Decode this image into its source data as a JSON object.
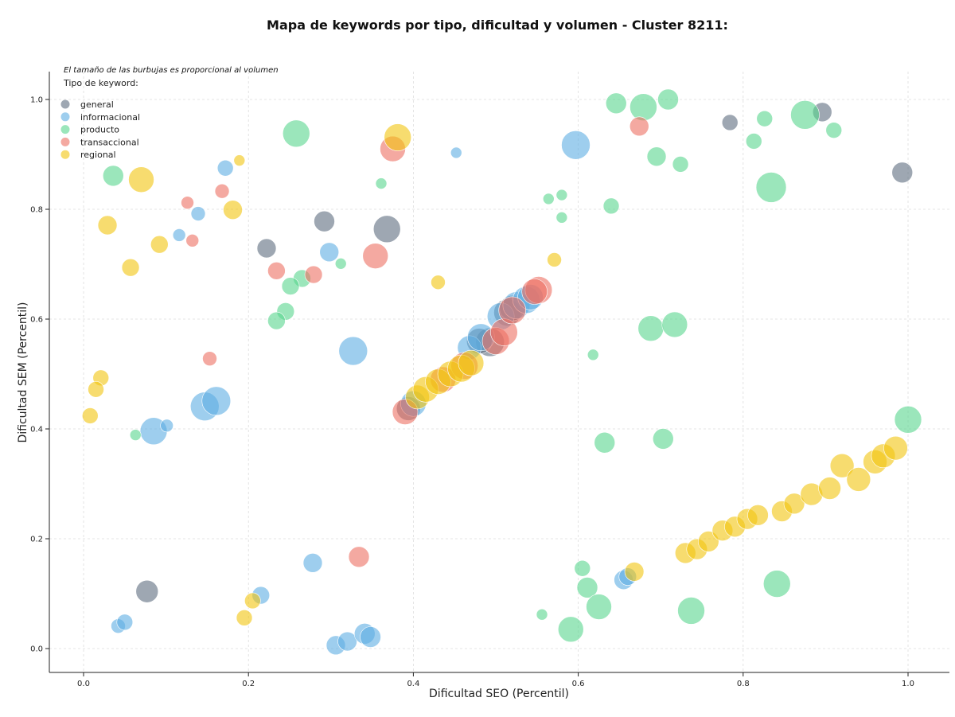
{
  "chart_data": {
    "type": "scatter",
    "title": "Mapa de keywords por tipo, dificultad y volumen - Cluster 8211:",
    "xlabel": "Dificultad SEO (Percentil)",
    "ylabel": "Dificultad SEM (Percentil)",
    "xlim": [
      -0.04,
      1.05
    ],
    "ylim": [
      -0.04,
      1.05
    ],
    "xticks": [
      "0.0",
      "0.2",
      "0.4",
      "0.6",
      "0.8",
      "1.0"
    ],
    "yticks": [
      "0.0",
      "0.2",
      "0.4",
      "0.6",
      "0.8",
      "1.0"
    ],
    "grid": true,
    "note": "El tamaño de las burbujas es proporcional al volumen",
    "legend_title": "Tipo de keyword:",
    "legend_position": "top-left",
    "series": [
      {
        "name": "general",
        "color": "#5d6d7e",
        "points": [
          {
            "x": 0.292,
            "y": 0.778,
            "size": 13
          },
          {
            "x": 0.368,
            "y": 0.764,
            "size": 17
          },
          {
            "x": 0.222,
            "y": 0.729,
            "size": 12
          },
          {
            "x": 0.784,
            "y": 0.958,
            "size": 10
          },
          {
            "x": 0.896,
            "y": 0.977,
            "size": 12
          },
          {
            "x": 0.993,
            "y": 0.867,
            "size": 13
          },
          {
            "x": 0.077,
            "y": 0.104,
            "size": 14
          },
          {
            "x": 0.493,
            "y": 0.558,
            "size": 18
          },
          {
            "x": 0.48,
            "y": 0.56,
            "size": 16
          },
          {
            "x": 0.514,
            "y": 0.612,
            "size": 17
          },
          {
            "x": 0.52,
            "y": 0.62,
            "size": 16
          },
          {
            "x": 0.394,
            "y": 0.437,
            "size": 15
          }
        ]
      },
      {
        "name": "informacional",
        "color": "#5dade2",
        "points": [
          {
            "x": 0.172,
            "y": 0.875,
            "size": 10
          },
          {
            "x": 0.452,
            "y": 0.903,
            "size": 7
          },
          {
            "x": 0.597,
            "y": 0.917,
            "size": 18
          },
          {
            "x": 0.139,
            "y": 0.792,
            "size": 9
          },
          {
            "x": 0.116,
            "y": 0.753,
            "size": 8
          },
          {
            "x": 0.298,
            "y": 0.722,
            "size": 12
          },
          {
            "x": 0.327,
            "y": 0.542,
            "size": 18
          },
          {
            "x": 0.147,
            "y": 0.441,
            "size": 18
          },
          {
            "x": 0.161,
            "y": 0.451,
            "size": 18
          },
          {
            "x": 0.085,
            "y": 0.396,
            "size": 17
          },
          {
            "x": 0.101,
            "y": 0.406,
            "size": 8
          },
          {
            "x": 0.278,
            "y": 0.156,
            "size": 12
          },
          {
            "x": 0.215,
            "y": 0.097,
            "size": 11
          },
          {
            "x": 0.042,
            "y": 0.041,
            "size": 9
          },
          {
            "x": 0.05,
            "y": 0.048,
            "size": 10
          },
          {
            "x": 0.306,
            "y": 0.006,
            "size": 12
          },
          {
            "x": 0.32,
            "y": 0.013,
            "size": 12
          },
          {
            "x": 0.341,
            "y": 0.027,
            "size": 13
          },
          {
            "x": 0.348,
            "y": 0.021,
            "size": 13
          },
          {
            "x": 0.655,
            "y": 0.125,
            "size": 12
          },
          {
            "x": 0.66,
            "y": 0.131,
            "size": 11
          },
          {
            "x": 0.4,
            "y": 0.446,
            "size": 16
          },
          {
            "x": 0.468,
            "y": 0.548,
            "size": 15
          },
          {
            "x": 0.482,
            "y": 0.567,
            "size": 17
          },
          {
            "x": 0.506,
            "y": 0.605,
            "size": 17
          },
          {
            "x": 0.525,
            "y": 0.625,
            "size": 17
          },
          {
            "x": 0.537,
            "y": 0.635,
            "size": 17
          },
          {
            "x": 0.542,
            "y": 0.64,
            "size": 16
          }
        ]
      },
      {
        "name": "producto",
        "color": "#58d68d",
        "points": [
          {
            "x": 0.036,
            "y": 0.861,
            "size": 13
          },
          {
            "x": 0.258,
            "y": 0.938,
            "size": 17
          },
          {
            "x": 0.361,
            "y": 0.847,
            "size": 7
          },
          {
            "x": 0.646,
            "y": 0.993,
            "size": 13
          },
          {
            "x": 0.679,
            "y": 0.986,
            "size": 17
          },
          {
            "x": 0.709,
            "y": 1.0,
            "size": 13
          },
          {
            "x": 0.695,
            "y": 0.896,
            "size": 12
          },
          {
            "x": 0.724,
            "y": 0.882,
            "size": 10
          },
          {
            "x": 0.813,
            "y": 0.924,
            "size": 10
          },
          {
            "x": 0.826,
            "y": 0.965,
            "size": 10
          },
          {
            "x": 0.875,
            "y": 0.972,
            "size": 18
          },
          {
            "x": 0.91,
            "y": 0.944,
            "size": 10
          },
          {
            "x": 0.834,
            "y": 0.84,
            "size": 19
          },
          {
            "x": 0.564,
            "y": 0.819,
            "size": 7
          },
          {
            "x": 0.58,
            "y": 0.826,
            "size": 7
          },
          {
            "x": 0.58,
            "y": 0.785,
            "size": 7
          },
          {
            "x": 0.64,
            "y": 0.806,
            "size": 10
          },
          {
            "x": 0.265,
            "y": 0.674,
            "size": 11
          },
          {
            "x": 0.251,
            "y": 0.66,
            "size": 11
          },
          {
            "x": 0.312,
            "y": 0.701,
            "size": 7
          },
          {
            "x": 0.245,
            "y": 0.614,
            "size": 11
          },
          {
            "x": 0.234,
            "y": 0.597,
            "size": 11
          },
          {
            "x": 0.688,
            "y": 0.583,
            "size": 16
          },
          {
            "x": 0.717,
            "y": 0.59,
            "size": 16
          },
          {
            "x": 0.618,
            "y": 0.535,
            "size": 7
          },
          {
            "x": 0.063,
            "y": 0.389,
            "size": 7
          },
          {
            "x": 0.632,
            "y": 0.375,
            "size": 13
          },
          {
            "x": 0.703,
            "y": 0.382,
            "size": 13
          },
          {
            "x": 1.0,
            "y": 0.417,
            "size": 17
          },
          {
            "x": 0.605,
            "y": 0.146,
            "size": 10
          },
          {
            "x": 0.611,
            "y": 0.111,
            "size": 13
          },
          {
            "x": 0.625,
            "y": 0.076,
            "size": 16
          },
          {
            "x": 0.737,
            "y": 0.069,
            "size": 17
          },
          {
            "x": 0.841,
            "y": 0.118,
            "size": 17
          },
          {
            "x": 0.556,
            "y": 0.062,
            "size": 7
          },
          {
            "x": 0.591,
            "y": 0.035,
            "size": 16
          }
        ]
      },
      {
        "name": "transaccional",
        "color": "#ec7063",
        "points": [
          {
            "x": 0.375,
            "y": 0.91,
            "size": 16
          },
          {
            "x": 0.674,
            "y": 0.951,
            "size": 12
          },
          {
            "x": 0.168,
            "y": 0.833,
            "size": 9
          },
          {
            "x": 0.126,
            "y": 0.812,
            "size": 8
          },
          {
            "x": 0.132,
            "y": 0.743,
            "size": 8
          },
          {
            "x": 0.354,
            "y": 0.715,
            "size": 16
          },
          {
            "x": 0.234,
            "y": 0.688,
            "size": 11
          },
          {
            "x": 0.279,
            "y": 0.681,
            "size": 11
          },
          {
            "x": 0.153,
            "y": 0.528,
            "size": 9
          },
          {
            "x": 0.334,
            "y": 0.167,
            "size": 13
          },
          {
            "x": 0.39,
            "y": 0.431,
            "size": 16
          },
          {
            "x": 0.436,
            "y": 0.49,
            "size": 16
          },
          {
            "x": 0.462,
            "y": 0.515,
            "size": 17
          },
          {
            "x": 0.5,
            "y": 0.56,
            "size": 17
          },
          {
            "x": 0.51,
            "y": 0.576,
            "size": 17
          },
          {
            "x": 0.52,
            "y": 0.616,
            "size": 17
          },
          {
            "x": 0.552,
            "y": 0.653,
            "size": 17
          },
          {
            "x": 0.547,
            "y": 0.65,
            "size": 16
          }
        ]
      },
      {
        "name": "regional",
        "color": "#f1c40f",
        "points": [
          {
            "x": 0.07,
            "y": 0.854,
            "size": 16
          },
          {
            "x": 0.381,
            "y": 0.931,
            "size": 17
          },
          {
            "x": 0.189,
            "y": 0.889,
            "size": 7
          },
          {
            "x": 0.029,
            "y": 0.771,
            "size": 12
          },
          {
            "x": 0.181,
            "y": 0.799,
            "size": 12
          },
          {
            "x": 0.092,
            "y": 0.736,
            "size": 11
          },
          {
            "x": 0.057,
            "y": 0.694,
            "size": 11
          },
          {
            "x": 0.571,
            "y": 0.708,
            "size": 9
          },
          {
            "x": 0.43,
            "y": 0.667,
            "size": 9
          },
          {
            "x": 0.021,
            "y": 0.493,
            "size": 10
          },
          {
            "x": 0.015,
            "y": 0.472,
            "size": 10
          },
          {
            "x": 0.008,
            "y": 0.424,
            "size": 10
          },
          {
            "x": 0.195,
            "y": 0.056,
            "size": 10
          },
          {
            "x": 0.205,
            "y": 0.087,
            "size": 10
          },
          {
            "x": 0.668,
            "y": 0.14,
            "size": 12
          },
          {
            "x": 0.73,
            "y": 0.174,
            "size": 13
          },
          {
            "x": 0.744,
            "y": 0.181,
            "size": 13
          },
          {
            "x": 0.758,
            "y": 0.195,
            "size": 13
          },
          {
            "x": 0.775,
            "y": 0.215,
            "size": 13
          },
          {
            "x": 0.79,
            "y": 0.222,
            "size": 13
          },
          {
            "x": 0.805,
            "y": 0.236,
            "size": 13
          },
          {
            "x": 0.818,
            "y": 0.243,
            "size": 13
          },
          {
            "x": 0.847,
            "y": 0.25,
            "size": 13
          },
          {
            "x": 0.862,
            "y": 0.264,
            "size": 13
          },
          {
            "x": 0.883,
            "y": 0.281,
            "size": 14
          },
          {
            "x": 0.905,
            "y": 0.292,
            "size": 14
          },
          {
            "x": 0.92,
            "y": 0.333,
            "size": 15
          },
          {
            "x": 0.94,
            "y": 0.308,
            "size": 15
          },
          {
            "x": 0.96,
            "y": 0.34,
            "size": 15
          },
          {
            "x": 0.97,
            "y": 0.351,
            "size": 15
          },
          {
            "x": 0.985,
            "y": 0.365,
            "size": 15
          },
          {
            "x": 0.405,
            "y": 0.458,
            "size": 15
          },
          {
            "x": 0.415,
            "y": 0.472,
            "size": 16
          },
          {
            "x": 0.43,
            "y": 0.486,
            "size": 16
          },
          {
            "x": 0.445,
            "y": 0.5,
            "size": 16
          },
          {
            "x": 0.458,
            "y": 0.51,
            "size": 17
          },
          {
            "x": 0.47,
            "y": 0.52,
            "size": 16
          }
        ]
      }
    ]
  }
}
